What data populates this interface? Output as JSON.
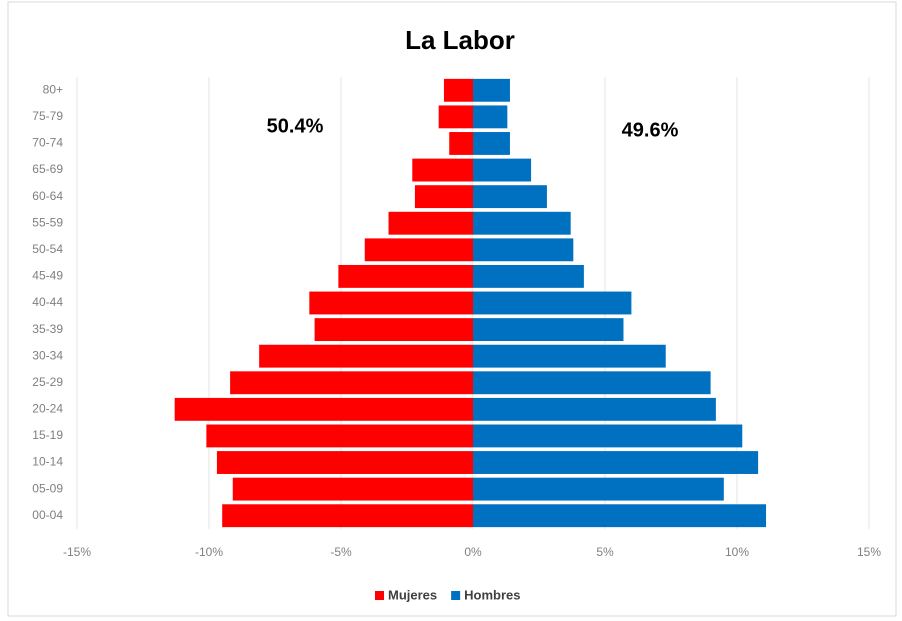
{
  "chart_data": {
    "type": "pyramid",
    "title": "La Labor",
    "categories": [
      "80+",
      "75-79",
      "70-74",
      "65-69",
      "60-64",
      "55-59",
      "50-54",
      "45-49",
      "40-44",
      "35-39",
      "30-34",
      "25-29",
      "20-24",
      "15-19",
      "10-14",
      "05-09",
      "00-04"
    ],
    "series": [
      {
        "name": "Mujeres",
        "color": "#ff0000",
        "values": [
          -1.1,
          -1.3,
          -0.9,
          -2.3,
          -2.2,
          -3.2,
          -4.1,
          -5.1,
          -6.2,
          -6.0,
          -8.1,
          -9.2,
          -11.3,
          -10.1,
          -9.7,
          -9.1,
          -9.5
        ]
      },
      {
        "name": "Hombres",
        "color": "#0070c0",
        "values": [
          1.4,
          1.3,
          1.4,
          2.2,
          2.8,
          3.7,
          3.8,
          4.2,
          6.0,
          5.7,
          7.3,
          9.0,
          9.2,
          10.2,
          10.8,
          9.5,
          11.1
        ]
      }
    ],
    "annotations": [
      "50.4%",
      "49.6%"
    ],
    "xlim": [
      -15,
      15
    ],
    "xticks": [
      {
        "value": -15,
        "label": "-15%"
      },
      {
        "value": -10,
        "label": "-10%"
      },
      {
        "value": -5,
        "label": "-5%"
      },
      {
        "value": 0,
        "label": "0%"
      },
      {
        "value": 5,
        "label": "5%"
      },
      {
        "value": 10,
        "label": "10%"
      },
      {
        "value": 15,
        "label": "15%"
      }
    ],
    "grid": true,
    "legend": "bottom"
  }
}
